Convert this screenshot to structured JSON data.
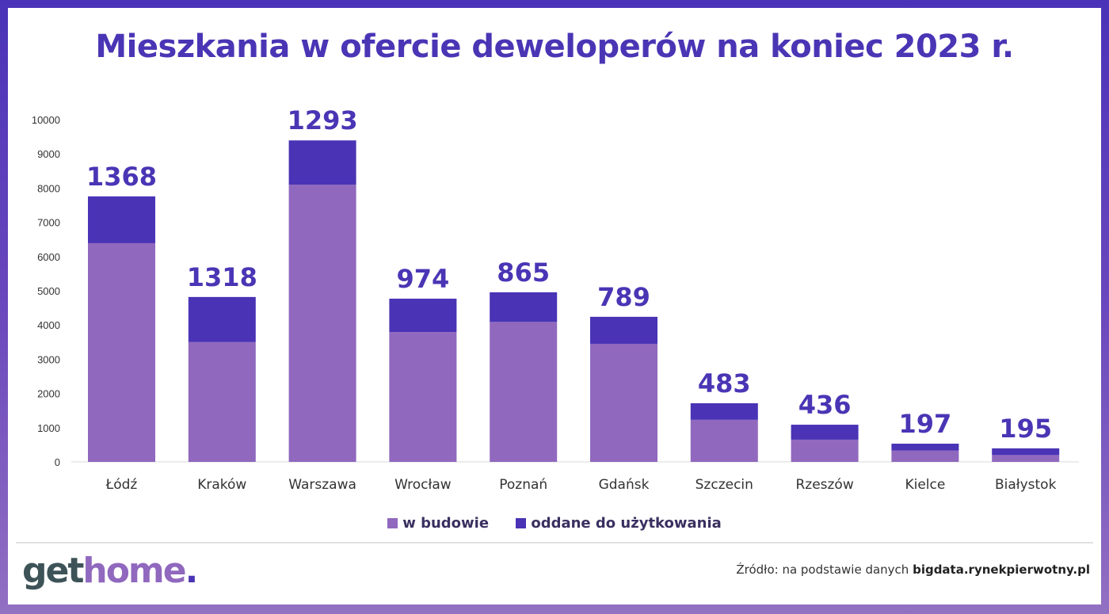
{
  "chart_data": {
    "type": "bar",
    "stacked": true,
    "title": "Mieszkania w ofercie deweloperów na koniec 2023 r.",
    "categories": [
      "Łódź",
      "Kraków",
      "Warszawa",
      "Wrocław",
      "Poznań",
      "Gdańsk",
      "Szczecin",
      "Rzeszów",
      "Kielce",
      "Białystok"
    ],
    "series": [
      {
        "name": "w budowie",
        "color": "#9068be",
        "values": [
          6390,
          3500,
          8100,
          3795,
          4090,
          3450,
          1230,
          650,
          335,
          200
        ]
      },
      {
        "name": "oddane do użytkowania",
        "color": "#4a33b5",
        "values": [
          1368,
          1318,
          1293,
          974,
          865,
          789,
          483,
          436,
          197,
          195
        ]
      }
    ],
    "data_labels": [
      "1368",
      "1318",
      "1293",
      "974",
      "865",
      "789",
      "483",
      "436",
      "197",
      "195"
    ],
    "yticks": [
      "0",
      "1000",
      "2000",
      "3000",
      "4000",
      "5000",
      "6000",
      "7000",
      "8000",
      "9000",
      "10000"
    ],
    "ylim": [
      0,
      10000
    ],
    "grid": false,
    "legend": "bottom"
  },
  "footer": {
    "logo": {
      "part1": "get",
      "part2": "home",
      "dot": "."
    },
    "source_prefix": "Źródło: na podstawie danych ",
    "source_bold": "bigdata.rynekpierwotny.pl"
  }
}
